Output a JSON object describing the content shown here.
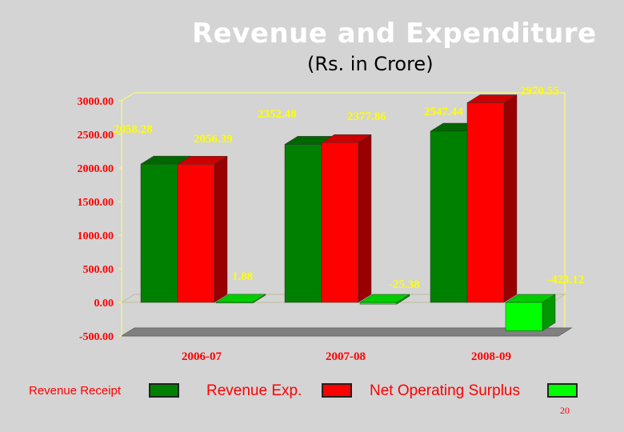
{
  "slide": {
    "title": "Revenue and Expenditure",
    "subtitle": "(Rs. in Crore)",
    "page_number": "20"
  },
  "colors": {
    "revenue_receipt": "#008000",
    "revenue_exp": "#ff0000",
    "net_operating_surplus": "#00ff00",
    "axis_text": "#ff0000",
    "data_label": "#ffff00",
    "frame": "#ffff66"
  },
  "chart_data": {
    "type": "bar",
    "title": "Revenue and Expenditure",
    "subtitle": "(Rs. in Crore)",
    "categories": [
      "2006-07",
      "2007-08",
      "2008-09"
    ],
    "series": [
      {
        "name": "Revenue Receipt",
        "values": [
          2058.28,
          2352.48,
          2547.44
        ]
      },
      {
        "name": "Revenue Exp.",
        "values": [
          2056.39,
          2377.86,
          2970.55
        ]
      },
      {
        "name": "Net Operating Surplus",
        "values": [
          1.88,
          -25.38,
          -423.12
        ]
      }
    ],
    "value_labels": [
      [
        "2058.28",
        "2352.48",
        "2547.44"
      ],
      [
        "2056.39",
        "2377.86",
        "2970.55"
      ],
      [
        "1.88",
        "-25.38",
        "-423.12"
      ]
    ],
    "y_ticks": [
      "3000.00",
      "2500.00",
      "2000.00",
      "1500.00",
      "1000.00",
      "500.00",
      "0.00",
      "-500.00"
    ],
    "ylim": [
      -500,
      3000
    ],
    "grid": false,
    "legend_position": "bottom",
    "style": "3d-columns"
  }
}
